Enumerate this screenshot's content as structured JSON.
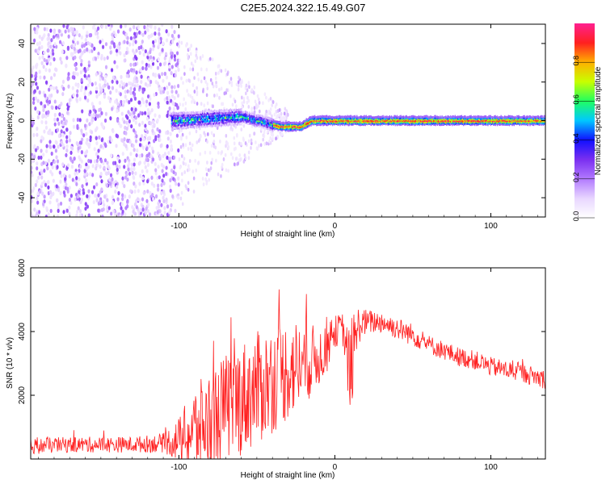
{
  "title": "C2E5.2024.322.15.49.G07",
  "colors": {
    "snr_line": "#ff2020",
    "axis": "#000000",
    "colormap": [
      "#ffffff",
      "#e8d6ff",
      "#b27aff",
      "#7a2ff0",
      "#1010ff",
      "#00c8ff",
      "#20ff60",
      "#c8ff00",
      "#ffb000",
      "#ff2020",
      "#ff2090"
    ]
  },
  "chart_data": [
    {
      "type": "heatmap",
      "xlabel": "Height of straight line (km)",
      "ylabel": "Frequency (Hz)",
      "xlim": [
        -195,
        135
      ],
      "ylim": [
        -50,
        50
      ],
      "x_ticks": [
        -100,
        0,
        100
      ],
      "y_ticks": [
        -40,
        -20,
        0,
        20,
        40
      ],
      "colorbar": {
        "label": "Normalized spectral amplitude",
        "range": [
          0,
          1
        ],
        "ticks": [
          0.0,
          0.2,
          0.4,
          0.6,
          0.8
        ]
      },
      "features": {
        "noise_region_x": [
          -195,
          -100
        ],
        "transition_region_x": [
          -100,
          -60
        ],
        "signal_band_center_hz": [
          {
            "x": -100,
            "f": 0
          },
          {
            "x": -60,
            "f": 2
          },
          {
            "x": -45,
            "f": -1
          },
          {
            "x": -35,
            "f": -3
          },
          {
            "x": -22,
            "f": -3
          },
          {
            "x": -15,
            "f": 0
          },
          {
            "x": 0,
            "f": 0
          },
          {
            "x": 135,
            "f": 0
          }
        ],
        "peak_amplitude_region_x": [
          -40,
          135
        ]
      }
    },
    {
      "type": "line",
      "xlabel": "Height of straight line (km)",
      "ylabel": "SNR (10 * v/v)",
      "xlim": [
        -195,
        135
      ],
      "ylim": [
        0,
        6000
      ],
      "x_ticks": [
        -100,
        0,
        100
      ],
      "y_ticks": [
        2000,
        4000,
        6000
      ],
      "series": [
        {
          "x": [
            -195,
            -170,
            -150,
            -130,
            -110,
            -100,
            -90,
            -80,
            -70,
            -60,
            -50,
            -40,
            -30,
            -20,
            -10,
            -5,
            0,
            5,
            10,
            15,
            20,
            30,
            40,
            50,
            60,
            70,
            80,
            90,
            100,
            110,
            120,
            135
          ],
          "y": [
            400,
            450,
            450,
            450,
            500,
            600,
            900,
            1200,
            1600,
            1900,
            2200,
            2500,
            2800,
            3000,
            3200,
            3600,
            4000,
            4100,
            2600,
            4200,
            4300,
            4300,
            4100,
            3900,
            3600,
            3400,
            3200,
            3100,
            2900,
            2800,
            2700,
            2500
          ],
          "spread": [
            250,
            250,
            250,
            250,
            300,
            700,
            1400,
            1600,
            1700,
            1800,
            1800,
            1700,
            1600,
            1400,
            900,
            900,
            500,
            500,
            1400,
            600,
            400,
            350,
            350,
            350,
            300,
            300,
            300,
            300,
            300,
            300,
            300,
            300
          ]
        }
      ]
    }
  ]
}
